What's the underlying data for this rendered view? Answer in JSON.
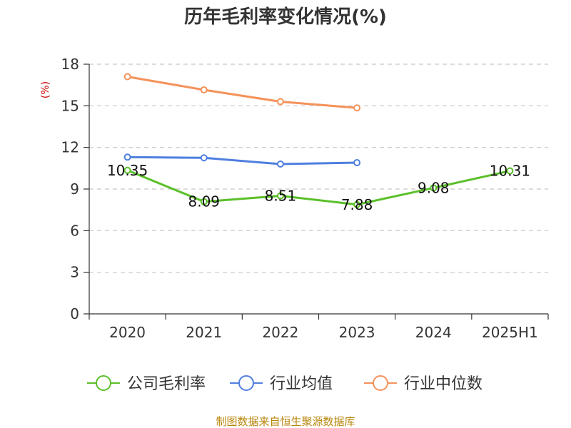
{
  "chart_data": {
    "type": "line",
    "title": "历年毛利率变化情况(%)",
    "ylabel": "(%)",
    "xlabel": "",
    "categories": [
      "2020",
      "2021",
      "2022",
      "2023",
      "2024",
      "2025H1"
    ],
    "ylim": [
      0,
      18
    ],
    "yticks": [
      0,
      3,
      6,
      9,
      12,
      15,
      18
    ],
    "grid": true,
    "legend_position": "bottom",
    "series": [
      {
        "name": "公司毛利率",
        "color": "#5bc02a",
        "values": [
          10.35,
          8.09,
          8.51,
          7.88,
          9.08,
          10.31
        ],
        "labels": [
          "10.35",
          "8.09",
          "8.51",
          "7.88",
          "9.08",
          "10.31"
        ]
      },
      {
        "name": "行业均值",
        "color": "#4f7fdf",
        "values": [
          11.3,
          11.25,
          10.8,
          10.9,
          null,
          null
        ]
      },
      {
        "name": "行业中位数",
        "color": "#f5925a",
        "values": [
          17.1,
          16.15,
          15.3,
          14.85,
          null,
          null
        ]
      }
    ]
  },
  "source_text": "制图数据来自恒生聚源数据库"
}
